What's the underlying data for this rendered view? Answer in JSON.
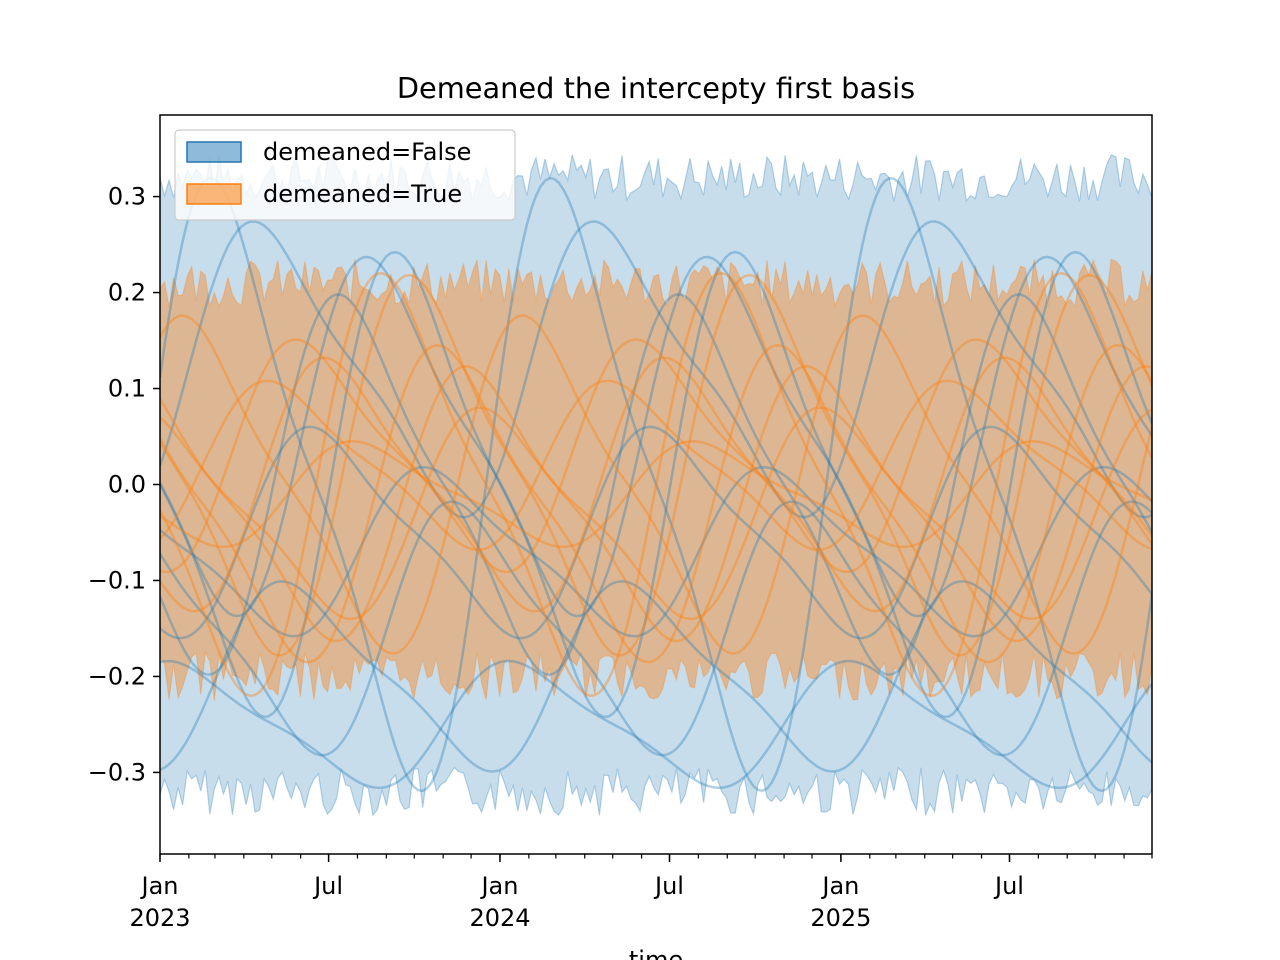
{
  "chart_data": {
    "type": "area",
    "title": "Demeaned the intercepty first basis",
    "xlabel": "time",
    "ylabel": "",
    "xlim": [
      "2023-01-01",
      "2025-12-01"
    ],
    "ylim": [
      -0.385,
      0.385
    ],
    "yticks": [
      -0.3,
      -0.2,
      -0.1,
      0.0,
      0.1,
      0.2,
      0.3
    ],
    "ytick_labels": [
      "−0.3",
      "−0.2",
      "−0.1",
      "0.0",
      "0.1",
      "0.2",
      "0.3"
    ],
    "xtick_labels": [
      {
        "date": "2023-01-01",
        "lines": [
          "Jan",
          "2023"
        ]
      },
      {
        "date": "2023-07-01",
        "lines": [
          "Jul"
        ]
      },
      {
        "date": "2024-01-01",
        "lines": [
          "Jan",
          "2024"
        ]
      },
      {
        "date": "2024-07-01",
        "lines": [
          "Jul"
        ]
      },
      {
        "date": "2025-01-01",
        "lines": [
          "Jan",
          "2025"
        ]
      },
      {
        "date": "2025-07-01",
        "lines": [
          "Jul"
        ]
      }
    ],
    "grid": false,
    "legend_position": "top-left",
    "series": [
      {
        "name": "demeaned=False",
        "color": "#1f77b4",
        "band_upper_approx": 0.31,
        "band_lower_approx": -0.31,
        "sample_curves": [
          {
            "amplitude": 0.29,
            "phase_month": 11.5,
            "offset": 0.0
          },
          {
            "amplitude": 0.17,
            "phase_month": 5.0,
            "offset": 0.05
          },
          {
            "amplitude": 0.22,
            "phase_month": 6.0,
            "offset": 0.0
          },
          {
            "amplitude": 0.1,
            "phase_month": 3.0,
            "offset": -0.05
          },
          {
            "amplitude": 0.12,
            "phase_month": 8.0,
            "offset": -0.15
          },
          {
            "amplitude": 0.09,
            "phase_month": 2.0,
            "offset": -0.2
          },
          {
            "amplitude": 0.06,
            "phase_month": 10.0,
            "offset": -0.25
          },
          {
            "amplitude": 0.14,
            "phase_month": 1.0,
            "offset": 0.12
          },
          {
            "amplitude": 0.08,
            "phase_month": 7.0,
            "offset": -0.07
          },
          {
            "amplitude": 0.18,
            "phase_month": 4.0,
            "offset": 0.0
          }
        ]
      },
      {
        "name": "demeaned=True",
        "color": "#ff7f0e",
        "band_upper_approx": 0.2,
        "band_lower_approx": -0.19,
        "sample_curves": [
          {
            "amplitude": 0.2,
            "phase_month": 5.5,
            "offset": 0.0
          },
          {
            "amplitude": 0.18,
            "phase_month": 6.5,
            "offset": 0.02
          },
          {
            "amplitude": 0.12,
            "phase_month": 3.5,
            "offset": 0.0
          },
          {
            "amplitude": 0.1,
            "phase_month": 9.0,
            "offset": -0.03
          },
          {
            "amplitude": 0.08,
            "phase_month": 1.5,
            "offset": 0.02
          },
          {
            "amplitude": 0.15,
            "phase_month": 7.5,
            "offset": -0.02
          },
          {
            "amplitude": 0.05,
            "phase_month": 4.5,
            "offset": -0.01
          },
          {
            "amplitude": 0.16,
            "phase_month": 10.5,
            "offset": 0.0
          },
          {
            "amplitude": 0.11,
            "phase_month": 2.5,
            "offset": 0.03
          },
          {
            "amplitude": 0.13,
            "phase_month": 8.5,
            "offset": -0.02
          }
        ]
      }
    ]
  }
}
